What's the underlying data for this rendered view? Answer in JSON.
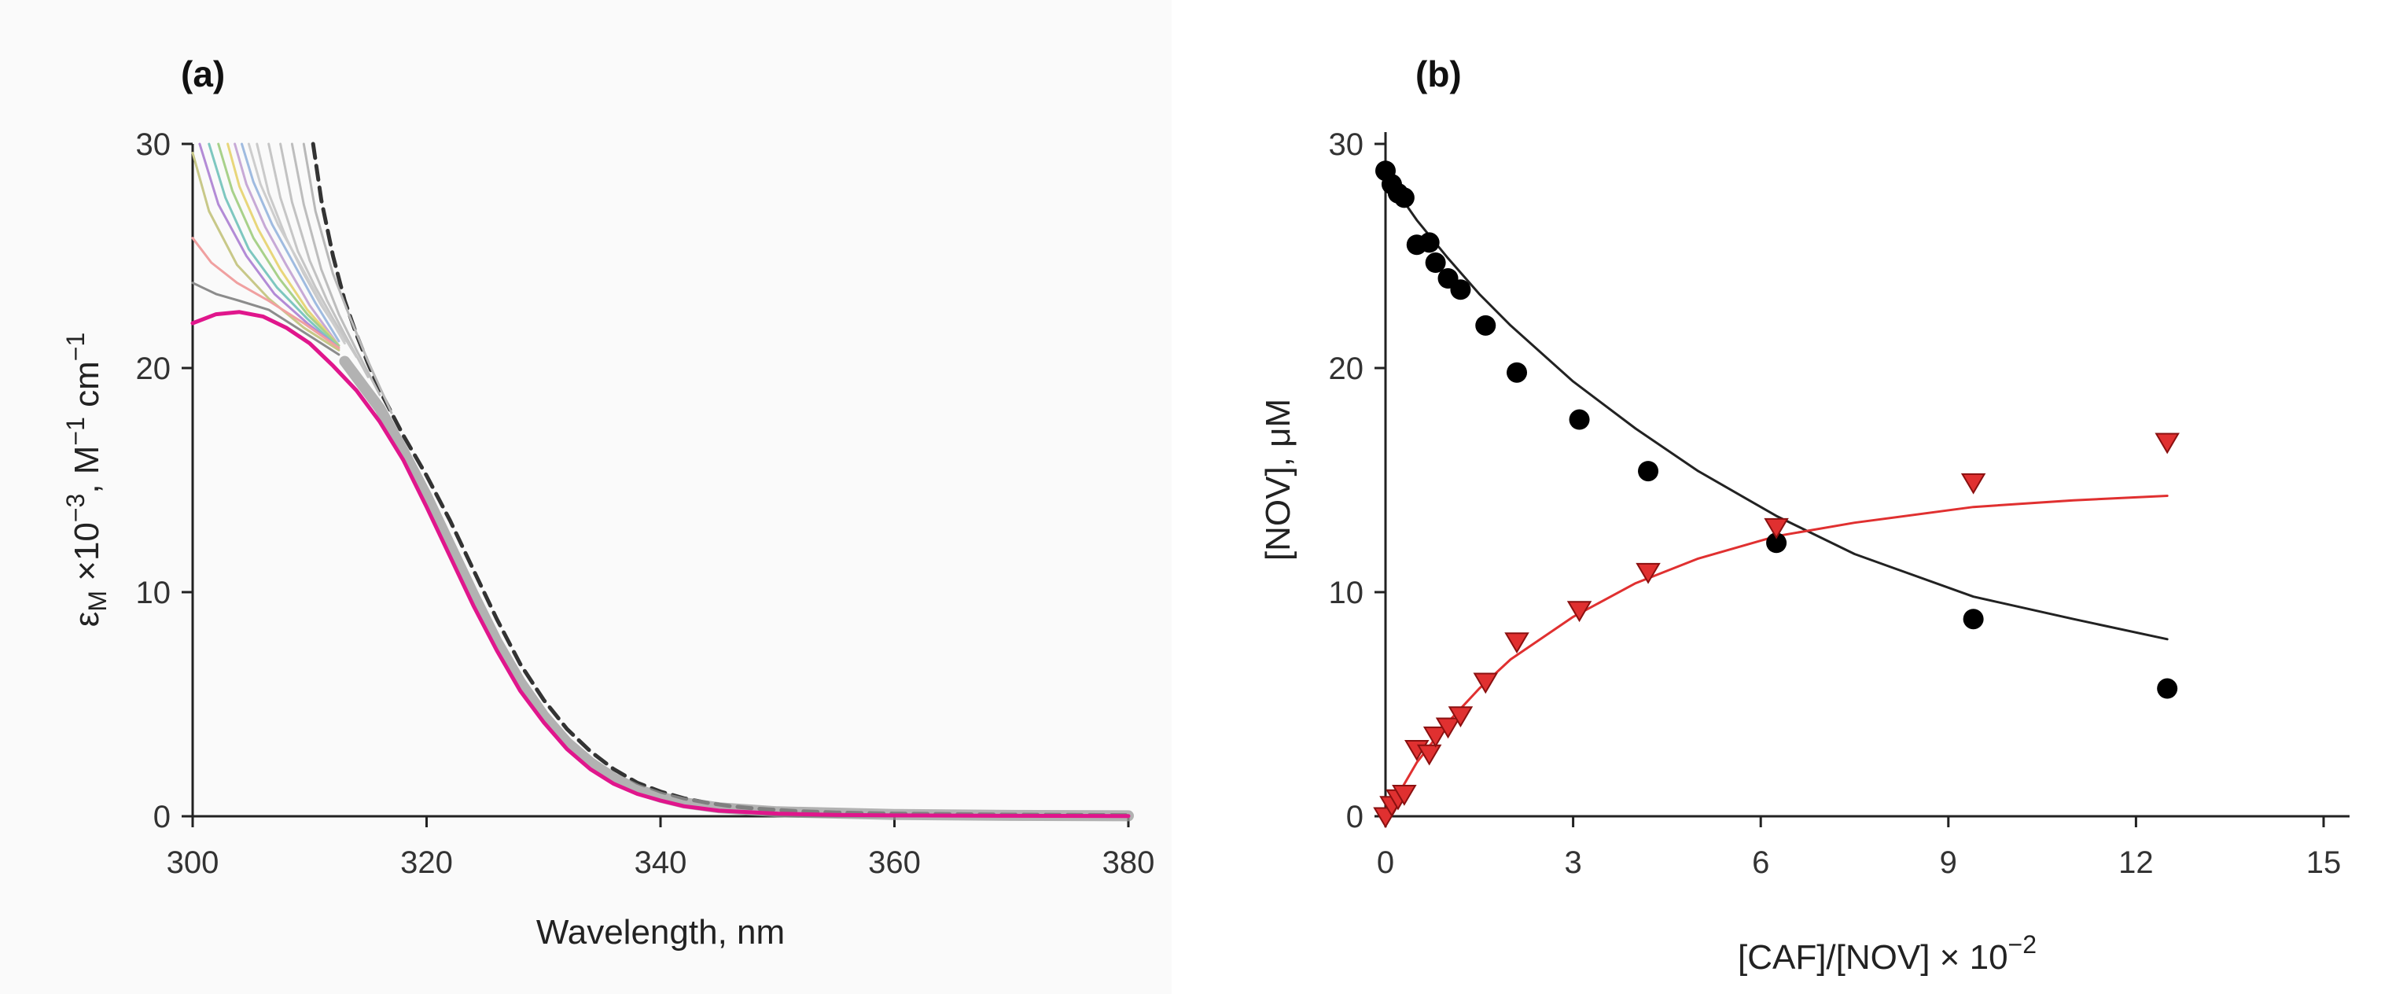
{
  "chart_data": [
    {
      "type": "line",
      "panel_label": "(a)",
      "xlabel": "Wavelength, nm",
      "ylabel_parts": {
        "eps": "ε",
        "sub": "M",
        "mid": " ×10",
        "exp1": "−3",
        "unit": ", M",
        "exp2": "−1",
        "unit2": " cm",
        "exp3": "−1"
      },
      "xlim": [
        300,
        380
      ],
      "ylim": [
        0,
        30
      ],
      "xticks": [
        "300",
        "320",
        "340",
        "360",
        "380"
      ],
      "yticks": [
        "0",
        "10",
        "20",
        "30"
      ],
      "series": [
        {
          "name": "dashed",
          "color": "#333333",
          "dash": true,
          "x": [
            310.3,
            311,
            312,
            313,
            314,
            315,
            316,
            318,
            320,
            322,
            324,
            326,
            328,
            330,
            332,
            334,
            336,
            338,
            340,
            342,
            344,
            346,
            348,
            350,
            352,
            355,
            360,
            370,
            380
          ],
          "y": [
            30,
            27.5,
            25,
            23,
            21.5,
            20.2,
            19,
            17,
            15.2,
            13.2,
            11,
            8.8,
            6.8,
            5.2,
            3.9,
            2.9,
            2.1,
            1.5,
            1.1,
            0.8,
            0.6,
            0.45,
            0.35,
            0.28,
            0.22,
            0.17,
            0.12,
            0.07,
            0.05
          ]
        },
        {
          "name": "gray-1",
          "color": "#b8b8b8",
          "dash": false,
          "x": [
            309.5,
            310.5,
            312,
            313.5,
            315,
            317
          ],
          "y": [
            30,
            27,
            24.2,
            22.2,
            20.3,
            18
          ]
        },
        {
          "name": "gray-2",
          "color": "#bdbdbd",
          "dash": false,
          "x": [
            308.5,
            309.5,
            311,
            312.5,
            314,
            316
          ],
          "y": [
            30,
            27.3,
            24.4,
            22.4,
            20.8,
            18.8
          ]
        },
        {
          "name": "gray-3",
          "color": "#c2c2c2",
          "dash": false,
          "x": [
            307.5,
            308.5,
            310,
            311.5,
            313,
            315
          ],
          "y": [
            30,
            27.4,
            24.8,
            23,
            21.5,
            19.6
          ]
        },
        {
          "name": "gray-4",
          "color": "#c6c6c6",
          "dash": false,
          "x": [
            306.5,
            307.5,
            309,
            310.5,
            312,
            314
          ],
          "y": [
            30,
            27.6,
            25.2,
            23.6,
            22.2,
            20.5
          ]
        },
        {
          "name": "gray-5",
          "color": "#cacaca",
          "dash": false,
          "x": [
            305.5,
            306.5,
            308,
            309.5,
            311,
            313
          ],
          "y": [
            30,
            27.8,
            25.8,
            24.2,
            22.8,
            21.2
          ]
        },
        {
          "name": "gray-6",
          "color": "#cdcdcd",
          "dash": false,
          "x": [
            304.8,
            305.8,
            307.3,
            309,
            311,
            313
          ],
          "y": [
            30,
            28.2,
            26.4,
            24.8,
            22.9,
            21.1
          ]
        },
        {
          "name": "blue",
          "color": "#9fbbe0",
          "dash": false,
          "x": [
            304.2,
            305.2,
            306.8,
            308.5,
            310.5,
            312.5
          ],
          "y": [
            30,
            28.3,
            26.4,
            24.8,
            22.9,
            21.2
          ]
        },
        {
          "name": "lavender",
          "color": "#c7a9d6",
          "dash": false,
          "x": [
            303.6,
            304.6,
            306.2,
            308,
            310,
            312.5
          ],
          "y": [
            30,
            28.2,
            26.3,
            24.6,
            22.8,
            21
          ]
        },
        {
          "name": "yellow",
          "color": "#e8d67a",
          "dash": false,
          "x": [
            303,
            304,
            305.6,
            307.5,
            309.8,
            312.5
          ],
          "y": [
            30,
            28.1,
            26.2,
            24.4,
            22.6,
            21
          ]
        },
        {
          "name": "green",
          "color": "#a8d18a",
          "dash": false,
          "x": [
            302.2,
            303.4,
            305.2,
            307.4,
            309.8,
            312.5
          ],
          "y": [
            30,
            27.9,
            25.8,
            24,
            22.4,
            21
          ]
        },
        {
          "name": "teal",
          "color": "#7ec7c0",
          "dash": false,
          "x": [
            301.4,
            302.8,
            304.8,
            307.2,
            309.8,
            312.5
          ],
          "y": [
            30,
            27.6,
            25.3,
            23.6,
            22.2,
            20.9
          ]
        },
        {
          "name": "purple",
          "color": "#b38bd6",
          "dash": false,
          "x": [
            300.6,
            302.2,
            304.6,
            307,
            309.8,
            312.5
          ],
          "y": [
            30,
            27.3,
            25,
            23.3,
            22,
            20.9
          ]
        },
        {
          "name": "olive",
          "color": "#c8c888",
          "dash": false,
          "x": [
            300,
            301.4,
            303.8,
            306.5,
            309.5,
            312.5
          ],
          "y": [
            29.6,
            27,
            24.6,
            23.1,
            21.8,
            20.8
          ]
        },
        {
          "name": "salmon",
          "color": "#f0a0a0",
          "dash": false,
          "x": [
            300,
            301.6,
            303.8,
            306.5,
            309.5,
            312.5
          ],
          "y": [
            25.8,
            24.7,
            23.8,
            23,
            22,
            20.9
          ]
        },
        {
          "name": "darkgray",
          "color": "#8c8c8c",
          "dash": false,
          "x": [
            300,
            302,
            304,
            306.5,
            309.5,
            312.5
          ],
          "y": [
            23.8,
            23.3,
            23,
            22.6,
            21.6,
            20.6
          ]
        },
        {
          "name": "gray-band",
          "color": "#9a9a9a",
          "dash": false,
          "x": [
            313,
            316,
            318,
            320,
            322,
            324,
            326,
            328,
            330,
            332,
            334,
            336,
            338,
            340,
            342,
            345,
            350,
            360,
            370,
            380
          ],
          "y": [
            20.3,
            18.2,
            16.3,
            14.3,
            12.1,
            9.9,
            7.8,
            6,
            4.5,
            3.3,
            2.4,
            1.7,
            1.2,
            0.85,
            0.6,
            0.38,
            0.2,
            0.08,
            0.04,
            0.02
          ]
        },
        {
          "name": "magenta",
          "color": "#e0168c",
          "dash": false,
          "x": [
            300,
            302,
            304,
            306,
            308,
            310,
            312,
            314,
            316,
            318,
            320,
            322,
            324,
            326,
            328,
            330,
            332,
            334,
            336,
            338,
            340,
            342,
            345,
            350,
            355,
            360,
            370,
            380
          ],
          "y": [
            22,
            22.4,
            22.5,
            22.3,
            21.8,
            21.1,
            20.1,
            19,
            17.6,
            15.9,
            13.8,
            11.6,
            9.4,
            7.4,
            5.6,
            4.2,
            3,
            2.1,
            1.45,
            1,
            0.7,
            0.45,
            0.25,
            0.12,
            0.06,
            0.04,
            0.02,
            0.01
          ]
        }
      ]
    },
    {
      "type": "scatter",
      "panel_label": "(b)",
      "ylabel": "[NOV], μM",
      "xlabel_parts": {
        "main": "[CAF]/[NOV]",
        "mid": " × 10",
        "exp": "−2"
      },
      "xlim": [
        0,
        15
      ],
      "ylim": [
        0,
        30
      ],
      "xticks": [
        "0",
        "3",
        "6",
        "9",
        "12",
        "15"
      ],
      "yticks": [
        "0",
        "10",
        "20",
        "30"
      ],
      "series": [
        {
          "name": "black circles",
          "color": "#000000",
          "marker": "circle",
          "x": [
            0.0,
            0.1,
            0.2,
            0.3,
            0.5,
            0.7,
            0.8,
            1.0,
            1.2,
            1.6,
            2.1,
            3.1,
            4.2,
            6.25,
            9.4,
            12.5
          ],
          "y": [
            28.8,
            28.2,
            27.8,
            27.6,
            25.5,
            25.6,
            24.7,
            24.0,
            23.5,
            21.9,
            19.8,
            17.7,
            15.4,
            12.2,
            8.8,
            5.7
          ]
        },
        {
          "name": "red triangles",
          "color": "#e03030",
          "marker": "triangle",
          "x": [
            0.0,
            0.1,
            0.2,
            0.3,
            0.5,
            0.7,
            0.8,
            1.0,
            1.2,
            1.6,
            2.1,
            3.1,
            4.2,
            6.25,
            9.4,
            12.5
          ],
          "y": [
            0.0,
            0.5,
            0.8,
            1.0,
            3.0,
            2.8,
            3.6,
            4.0,
            4.5,
            6.0,
            7.8,
            9.2,
            10.9,
            12.9,
            14.9,
            16.7
          ]
        },
        {
          "name": "black fit",
          "color": "#222222",
          "line": true,
          "x": [
            0,
            0.5,
            1,
            1.5,
            2,
            3,
            4,
            5,
            6.25,
            7.5,
            9.4,
            11,
            12.5
          ],
          "y": [
            28.6,
            26.6,
            24.9,
            23.3,
            21.9,
            19.4,
            17.3,
            15.4,
            13.4,
            11.7,
            9.8,
            8.8,
            7.9
          ]
        },
        {
          "name": "red fit",
          "color": "#e03030",
          "line": true,
          "x": [
            0,
            0.5,
            1,
            1.5,
            2,
            3,
            4,
            5,
            6.25,
            7.5,
            9.4,
            11,
            12.5
          ],
          "y": [
            0,
            2.4,
            4.2,
            5.7,
            7.0,
            8.9,
            10.4,
            11.5,
            12.5,
            13.1,
            13.8,
            14.1,
            14.3
          ]
        }
      ]
    }
  ]
}
